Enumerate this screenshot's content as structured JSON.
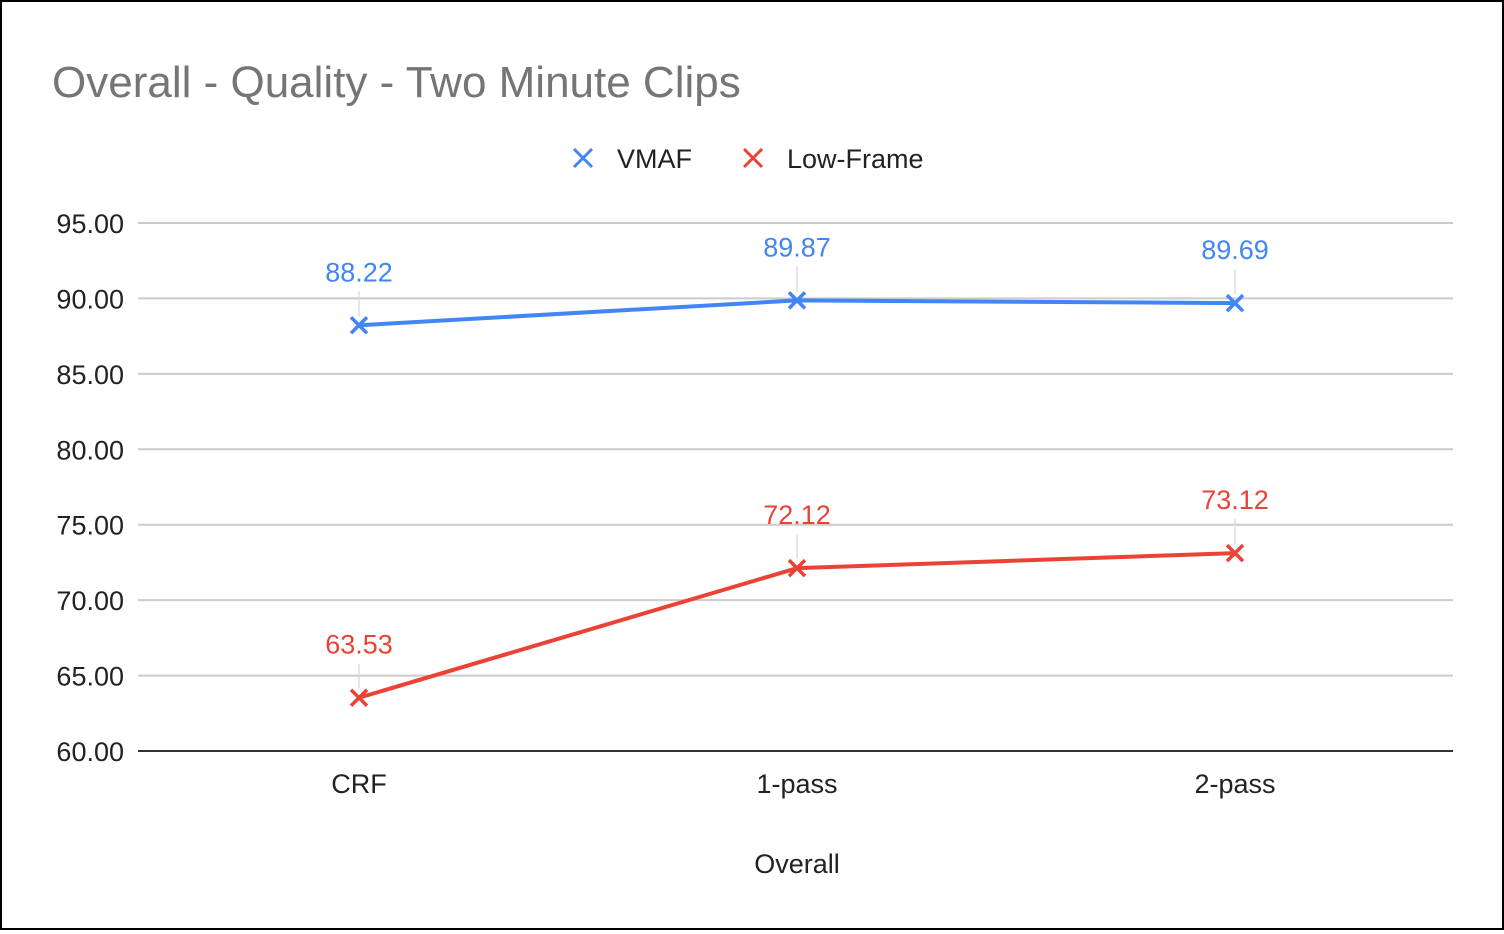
{
  "chart_data": {
    "type": "line",
    "title": "Overall - Quality - Two Minute Clips",
    "xlabel": "Overall",
    "ylabel": "",
    "categories": [
      "CRF",
      "1-pass",
      "2-pass"
    ],
    "ylim": [
      60,
      95
    ],
    "yticks": [
      "60.00",
      "65.00",
      "70.00",
      "75.00",
      "80.00",
      "85.00",
      "90.00",
      "95.00"
    ],
    "grid": true,
    "legend": "top-center",
    "marker": "x",
    "series": [
      {
        "name": "VMAF",
        "color": "#4285f4",
        "values": [
          88.22,
          89.87,
          89.69
        ],
        "labels": [
          "88.22",
          "89.87",
          "89.69"
        ]
      },
      {
        "name": "Low-Frame",
        "color": "#ea4335",
        "values": [
          63.53,
          72.12,
          73.12
        ],
        "labels": [
          "63.53",
          "72.12",
          "73.12"
        ]
      }
    ]
  }
}
